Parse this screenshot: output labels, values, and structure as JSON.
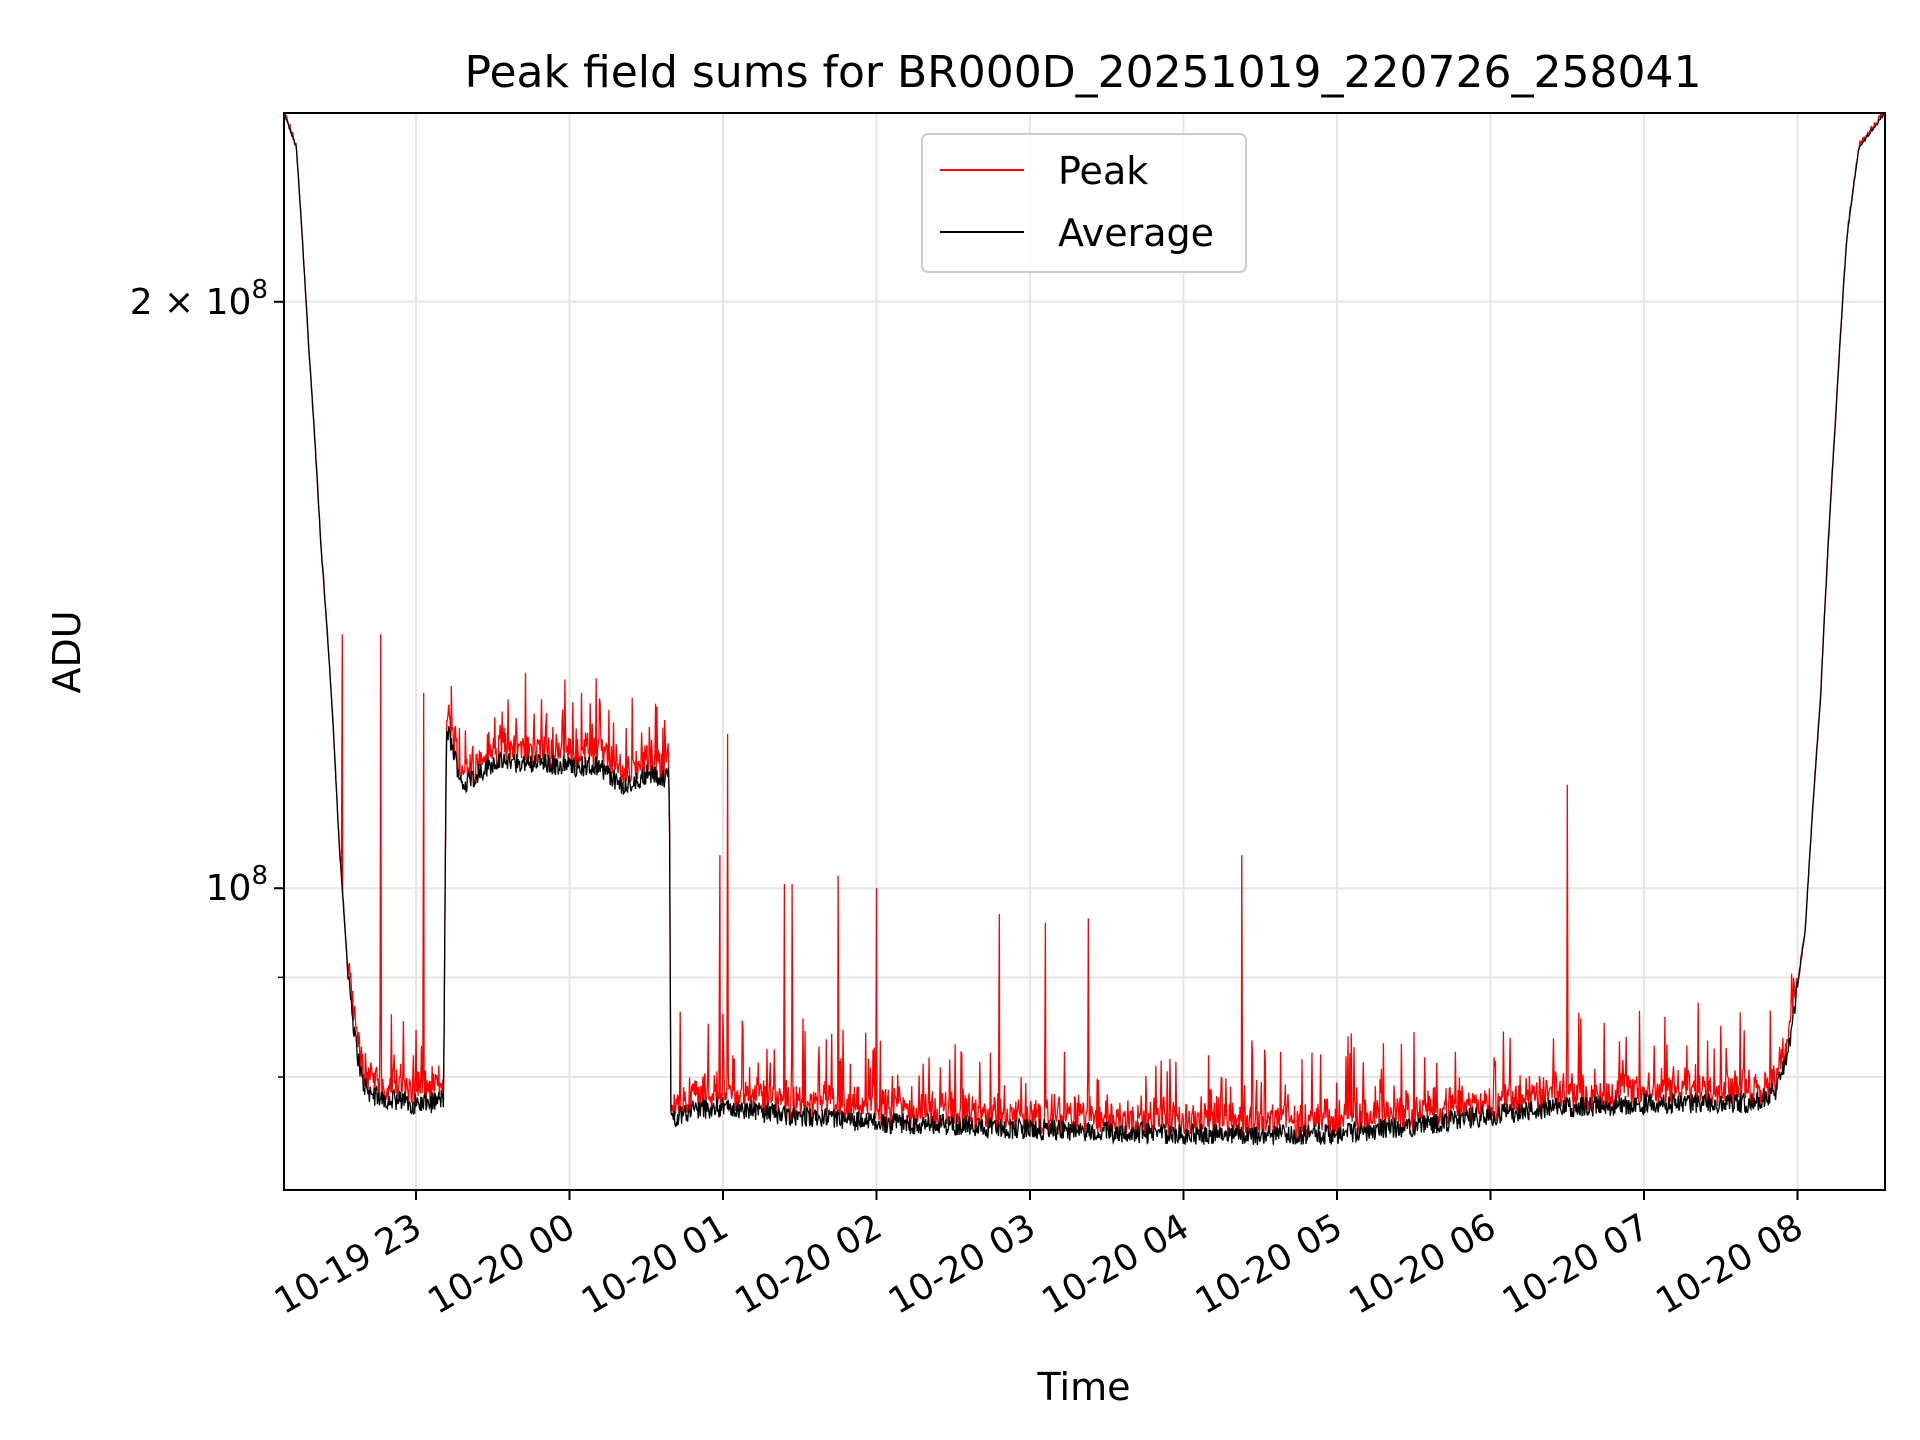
{
  "chart_data": {
    "type": "line",
    "title": "Peak field sums for BR000D_20251019_220726_258041",
    "xlabel": "Time",
    "ylabel": "ADU",
    "yscale": "log",
    "ylim": [
      70000000,
      250000000
    ],
    "xlim_hours": [
      -0.86,
      9.57
    ],
    "x_unit": "hours since 2025-10-19 23:00",
    "grid": true,
    "legend_position": "top-center",
    "x_ticks": [
      {
        "label": "10-19 23",
        "value": 0
      },
      {
        "label": "10-20 00",
        "value": 1
      },
      {
        "label": "10-20 01",
        "value": 2
      },
      {
        "label": "10-20 02",
        "value": 3
      },
      {
        "label": "10-20 03",
        "value": 4
      },
      {
        "label": "10-20 04",
        "value": 5
      },
      {
        "label": "10-20 05",
        "value": 6
      },
      {
        "label": "10-20 06",
        "value": 7
      },
      {
        "label": "10-20 07",
        "value": 8
      },
      {
        "label": "10-20 08",
        "value": 9
      }
    ],
    "y_major_ticks": [
      {
        "value": 100000000,
        "mantissa": "",
        "exp": "8"
      },
      {
        "value": 200000000,
        "mantissa": "2 × ",
        "exp": "8"
      }
    ],
    "y_minor_grid": [
      80000000,
      90000000
    ],
    "series": [
      {
        "name": "Peak",
        "color": "#ff0000"
      },
      {
        "name": "Average",
        "color": "#000000"
      }
    ],
    "average_profile": {
      "x": [
        -0.86,
        -0.78,
        -0.7,
        -0.62,
        -0.55,
        -0.5,
        -0.45,
        -0.4,
        -0.35,
        -0.3,
        -0.22,
        -0.1,
        0.0,
        0.1,
        0.18,
        0.2,
        0.3,
        0.5,
        0.8,
        1.0,
        1.2,
        1.35,
        1.5,
        1.6,
        1.65,
        1.66,
        1.8,
        2.0,
        2.5,
        3.0,
        3.5,
        4.0,
        4.5,
        5.0,
        5.5,
        6.0,
        6.5,
        7.0,
        7.5,
        8.0,
        8.4,
        8.6,
        8.75,
        8.85,
        8.95,
        9.05,
        9.15,
        9.25,
        9.32,
        9.4,
        9.57
      ],
      "y": [
        250000000,
        240000000,
        190000000,
        150000000,
        125000000,
        105000000,
        92000000,
        84000000,
        79500000,
        78500000,
        78000000,
        77800000,
        77500000,
        77600000,
        78000000,
        121000000,
        113000000,
        116000000,
        116000000,
        115500000,
        115500000,
        112500000,
        114500000,
        114000000,
        114000000,
        76200000,
        77000000,
        77200000,
        76300000,
        75800000,
        75600000,
        75200000,
        75000000,
        74800000,
        74700000,
        74800000,
        75500000,
        76500000,
        77200000,
        77500000,
        77600000,
        77600000,
        77700000,
        78500000,
        83000000,
        95000000,
        125000000,
        175000000,
        215000000,
        240000000,
        250000000
      ]
    },
    "peak_spikes": [
      {
        "x": -0.48,
        "y": 135000000
      },
      {
        "x": -0.23,
        "y": 135000000
      },
      {
        "x": 0.05,
        "y": 126000000
      },
      {
        "x": 0.23,
        "y": 127000000
      },
      {
        "x": 0.6,
        "y": 125000000
      },
      {
        "x": 0.85,
        "y": 123000000
      },
      {
        "x": 0.97,
        "y": 128000000
      },
      {
        "x": 1.52,
        "y": 121000000
      },
      {
        "x": 1.62,
        "y": 122000000
      },
      {
        "x": 1.98,
        "y": 104000000
      },
      {
        "x": 2.03,
        "y": 120000000
      },
      {
        "x": 2.4,
        "y": 100500000
      },
      {
        "x": 2.45,
        "y": 100500000
      },
      {
        "x": 2.75,
        "y": 101500000
      },
      {
        "x": 3.0,
        "y": 100000000
      },
      {
        "x": 3.8,
        "y": 97000000
      },
      {
        "x": 4.1,
        "y": 96000000
      },
      {
        "x": 4.38,
        "y": 96500000
      },
      {
        "x": 5.38,
        "y": 104000000
      },
      {
        "x": 7.5,
        "y": 113000000
      },
      {
        "x": 8.5,
        "y": 85000000
      }
    ],
    "legend": [
      "Peak",
      "Average"
    ]
  }
}
